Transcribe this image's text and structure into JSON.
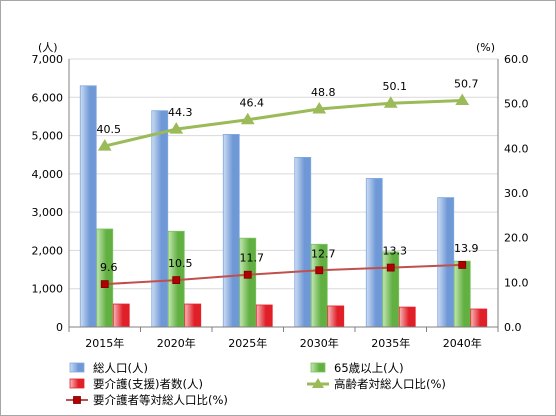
{
  "chart_data": {
    "type": "bar",
    "categories": [
      "2015年",
      "2020年",
      "2025年",
      "2030年",
      "2035年",
      "2040年"
    ],
    "series": [
      {
        "name": "総人口(人)",
        "kind": "bar",
        "axis": "left",
        "color": "#7fa7e0",
        "values": [
          6300,
          5650,
          5030,
          4430,
          3880,
          3380
        ]
      },
      {
        "name": "65歳以上(人)",
        "kind": "bar",
        "axis": "left",
        "color": "#7bc35f",
        "values": [
          2560,
          2500,
          2320,
          2160,
          1960,
          1720
        ]
      },
      {
        "name": "要介護(支援)者数(人)",
        "kind": "bar",
        "axis": "left",
        "color": "#e8202a",
        "values": [
          600,
          600,
          575,
          550,
          520,
          470
        ]
      },
      {
        "name": "高齢者対総人口比(%)",
        "kind": "line",
        "axis": "right",
        "color": "#9bbb59",
        "marker": "triangle",
        "values": [
          40.5,
          44.3,
          46.4,
          48.8,
          50.1,
          50.7
        ]
      },
      {
        "name": "要介護者等対総人口比(%)",
        "kind": "line",
        "axis": "right",
        "color": "#c0504d",
        "marker": "square",
        "values": [
          9.6,
          10.5,
          11.7,
          12.7,
          13.3,
          13.9
        ]
      }
    ],
    "left_axis": {
      "unit": "(人)",
      "min": 0,
      "max": 7000,
      "step": 1000,
      "tick_labels": [
        "0",
        "1,000",
        "2,000",
        "3,000",
        "4,000",
        "5,000",
        "6,000",
        "7,000"
      ]
    },
    "right_axis": {
      "unit": "(%)",
      "min": 0,
      "max": 60,
      "step": 10,
      "tick_labels": [
        "0.0",
        "10.0",
        "20.0",
        "30.0",
        "40.0",
        "50.0",
        "60.0"
      ]
    },
    "gridlines": true,
    "legend_position": "bottom",
    "legend": [
      [
        "総人口(人)",
        "65歳以上(人)"
      ],
      [
        "要介護(支援)者数(人)",
        "高齢者対総人口比(%)"
      ],
      [
        "要介護者等対総人口比(%)"
      ]
    ]
  }
}
